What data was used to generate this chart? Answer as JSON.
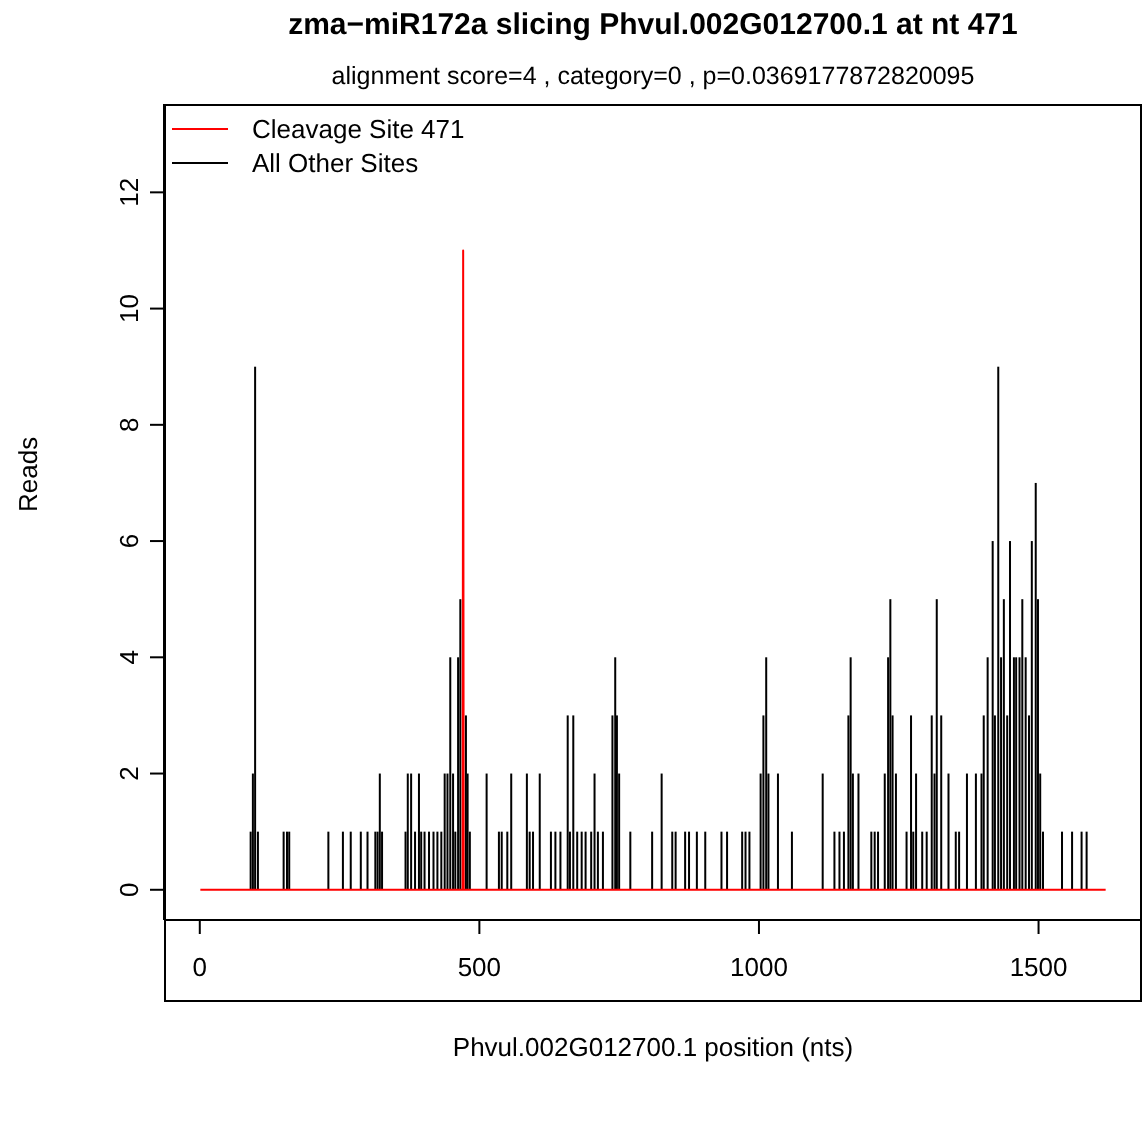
{
  "chart_data": {
    "type": "bar",
    "title": "zma−miR172a slicing Phvul.002G012700.1 at nt 471",
    "subtitle": "alignment score=4 , category=0 , p=0.0369177872820095",
    "xlabel": "Phvul.002G012700.1 position (nts)",
    "ylabel": "Reads",
    "xlim": [
      -64,
      1685
    ],
    "xticks": [
      0,
      500,
      1000,
      1500
    ],
    "ylim": [
      -0.52,
      13.52
    ],
    "yticks": [
      0,
      2,
      4,
      6,
      8,
      10,
      12
    ],
    "legend": "top left",
    "grid": false,
    "series": [
      {
        "name": "Cleavage Site 471",
        "type": "line",
        "color": "#ff0000",
        "x": [
          1,
          470,
          471,
          472,
          1620
        ],
        "values": [
          0,
          0,
          11,
          0,
          0
        ]
      },
      {
        "name": "All Other Sites",
        "color": "#000000",
        "x": [
          91,
          95,
          99,
          104,
          150,
          156,
          160,
          230,
          256,
          270,
          288,
          300,
          314,
          318,
          322,
          326,
          368,
          372,
          378,
          385,
          392,
          396,
          402,
          410,
          418,
          425,
          432,
          438,
          443,
          448,
          453,
          457,
          462,
          466,
          476,
          479,
          483,
          513,
          535,
          540,
          550,
          557,
          585,
          590,
          596,
          608,
          628,
          636,
          645,
          658,
          662,
          668,
          675,
          683,
          690,
          700,
          706,
          712,
          721,
          738,
          743,
          746,
          750,
          770,
          809,
          826,
          845,
          851,
          868,
          875,
          889,
          904,
          933,
          943,
          970,
          976,
          983,
          1003,
          1008,
          1013,
          1017,
          1034,
          1059,
          1114,
          1135,
          1144,
          1152,
          1160,
          1164,
          1168,
          1178,
          1201,
          1207,
          1213,
          1225,
          1231,
          1235,
          1239,
          1245,
          1264,
          1272,
          1276,
          1281,
          1292,
          1300,
          1309,
          1314,
          1318,
          1326,
          1339,
          1352,
          1358,
          1372,
          1388,
          1398,
          1402,
          1409,
          1418,
          1422,
          1428,
          1433,
          1438,
          1444,
          1449,
          1456,
          1460,
          1466,
          1471,
          1477,
          1483,
          1488,
          1495,
          1499,
          1503,
          1508,
          1542,
          1560,
          1577,
          1586
        ],
        "values": [
          1,
          2,
          9,
          1,
          1,
          1,
          1,
          1,
          1,
          1,
          1,
          1,
          1,
          1,
          2,
          1,
          1,
          2,
          2,
          1,
          2,
          1,
          1,
          1,
          1,
          1,
          1,
          2,
          2,
          4,
          2,
          1,
          4,
          5,
          3,
          2,
          1,
          2,
          1,
          1,
          1,
          2,
          2,
          1,
          1,
          2,
          1,
          1,
          1,
          3,
          1,
          3,
          1,
          1,
          1,
          1,
          2,
          1,
          1,
          3,
          4,
          3,
          2,
          1,
          1,
          2,
          1,
          1,
          1,
          1,
          1,
          1,
          1,
          1,
          1,
          1,
          1,
          2,
          3,
          4,
          2,
          2,
          1,
          2,
          1,
          1,
          1,
          3,
          4,
          2,
          2,
          1,
          1,
          1,
          2,
          4,
          5,
          3,
          2,
          1,
          3,
          1,
          2,
          1,
          1,
          3,
          2,
          5,
          3,
          2,
          1,
          1,
          2,
          2,
          2,
          3,
          4,
          6,
          3,
          9,
          4,
          5,
          3,
          6,
          4,
          4,
          4,
          5,
          4,
          3,
          6,
          7,
          5,
          2,
          1,
          1,
          1,
          1,
          1
        ]
      }
    ]
  }
}
